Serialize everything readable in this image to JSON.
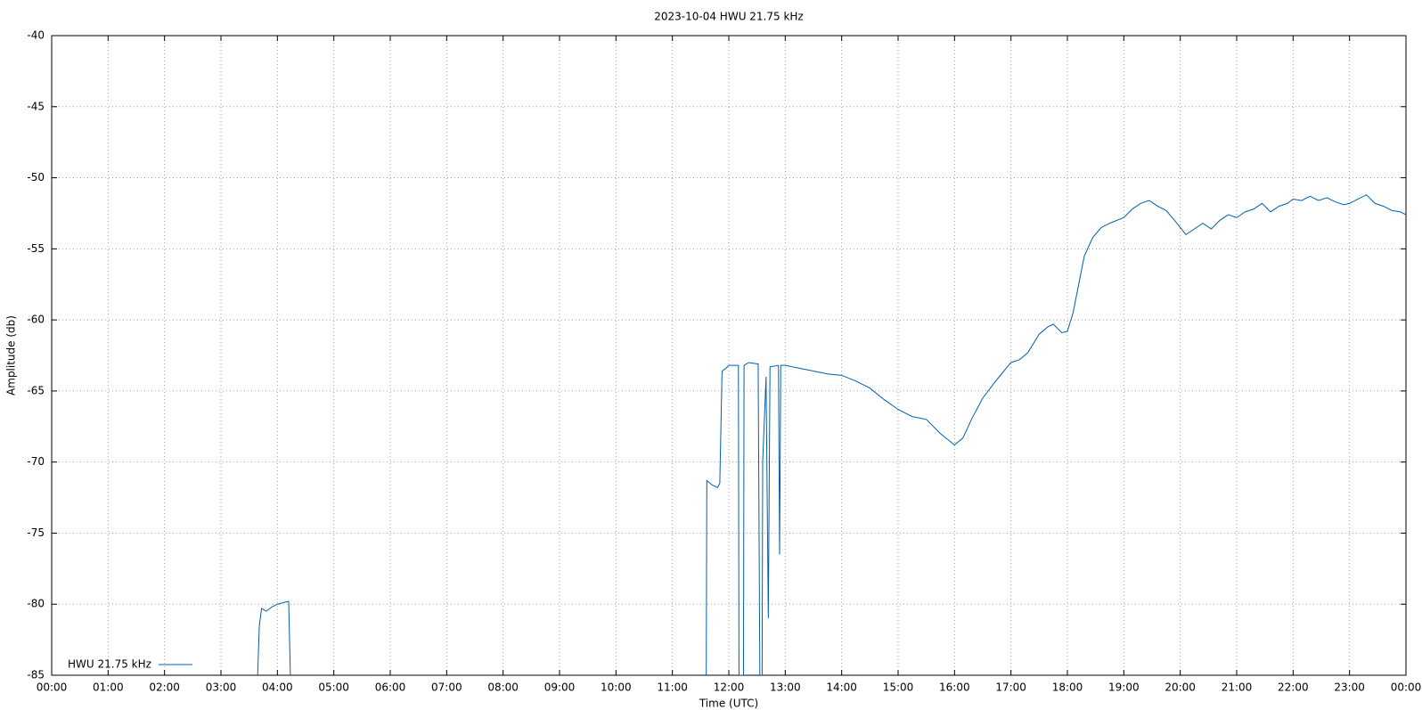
{
  "chart_data": {
    "type": "line",
    "title": "2023-10-04 HWU 21.75 kHz",
    "x_label": "Time (UTC)",
    "y_label": "Amplitude (db)",
    "xlim": [
      0,
      24
    ],
    "ylim": [
      -85,
      -40
    ],
    "xticks": [
      {
        "value": 0,
        "label": "00:00"
      },
      {
        "value": 1,
        "label": "01:00"
      },
      {
        "value": 2,
        "label": "02:00"
      },
      {
        "value": 3,
        "label": "03:00"
      },
      {
        "value": 4,
        "label": "04:00"
      },
      {
        "value": 5,
        "label": "05:00"
      },
      {
        "value": 6,
        "label": "06:00"
      },
      {
        "value": 7,
        "label": "07:00"
      },
      {
        "value": 8,
        "label": "08:00"
      },
      {
        "value": 9,
        "label": "09:00"
      },
      {
        "value": 10,
        "label": "10:00"
      },
      {
        "value": 11,
        "label": "11:00"
      },
      {
        "value": 12,
        "label": "12:00"
      },
      {
        "value": 13,
        "label": "13:00"
      },
      {
        "value": 14,
        "label": "14:00"
      },
      {
        "value": 15,
        "label": "15:00"
      },
      {
        "value": 16,
        "label": "16:00"
      },
      {
        "value": 17,
        "label": "17:00"
      },
      {
        "value": 18,
        "label": "18:00"
      },
      {
        "value": 19,
        "label": "19:00"
      },
      {
        "value": 20,
        "label": "20:00"
      },
      {
        "value": 21,
        "label": "21:00"
      },
      {
        "value": 22,
        "label": "22:00"
      },
      {
        "value": 23,
        "label": "23:00"
      },
      {
        "value": 24,
        "label": "00:00"
      }
    ],
    "yticks": [
      -85,
      -80,
      -75,
      -70,
      -65,
      -60,
      -55,
      -50,
      -45,
      -40
    ],
    "grid": true,
    "legend": "lower left",
    "x": [
      3.65,
      3.68,
      3.72,
      3.8,
      3.9,
      4.0,
      4.1,
      4.2,
      4.23,
      8.0,
      11.6,
      11.61,
      11.7,
      11.8,
      11.84,
      11.88,
      11.95,
      12.0,
      12.17,
      12.18,
      12.26,
      12.27,
      12.35,
      12.52,
      12.55,
      12.59,
      12.6,
      12.66,
      12.7,
      12.73,
      12.88,
      12.9,
      12.92,
      13.0,
      13.25,
      13.5,
      13.75,
      14.0,
      14.25,
      14.5,
      14.75,
      15.0,
      15.25,
      15.5,
      15.75,
      16.0,
      16.15,
      16.3,
      16.5,
      16.75,
      17.0,
      17.15,
      17.3,
      17.5,
      17.65,
      17.75,
      17.9,
      18.0,
      18.1,
      18.2,
      18.3,
      18.45,
      18.6,
      18.75,
      19.0,
      19.15,
      19.3,
      19.45,
      19.6,
      19.75,
      19.9,
      20.0,
      20.1,
      20.25,
      20.4,
      20.55,
      20.7,
      20.85,
      21.0,
      21.15,
      21.3,
      21.45,
      21.6,
      21.75,
      21.9,
      22.0,
      22.15,
      22.3,
      22.45,
      22.6,
      22.75,
      22.9,
      23.0,
      23.15,
      23.3,
      23.45,
      23.6,
      23.75,
      23.9,
      24.0
    ],
    "series": [
      {
        "name": "HWU 21.75 kHz",
        "color": "#0060ad",
        "values": [
          -85,
          -81.5,
          -80.3,
          -80.5,
          -80.2,
          -80.0,
          -79.9,
          -79.8,
          -85,
          null,
          -85,
          -71.3,
          -71.6,
          -71.8,
          -71.5,
          -63.6,
          -63.4,
          -63.2,
          -63.2,
          -85,
          -85,
          -63.2,
          -63.0,
          -63.1,
          -85,
          -85,
          -70,
          -64,
          -81,
          -63.3,
          -63.2,
          -76.5,
          -63.2,
          -63.2,
          -63.4,
          -63.6,
          -63.8,
          -63.9,
          -64.3,
          -64.8,
          -65.6,
          -66.3,
          -66.8,
          -67.0,
          -68.0,
          -68.8,
          -68.3,
          -67.0,
          -65.5,
          -64.2,
          -63.0,
          -62.8,
          -62.3,
          -61.0,
          -60.5,
          -60.3,
          -60.9,
          -60.8,
          -59.5,
          -57.5,
          -55.5,
          -54.2,
          -53.5,
          -53.2,
          -52.8,
          -52.2,
          -51.8,
          -51.6,
          -52.0,
          -52.3,
          -53.0,
          -53.5,
          -54.0,
          -53.6,
          -53.2,
          -53.6,
          -53.0,
          -52.6,
          -52.8,
          -52.4,
          -52.2,
          -51.8,
          -52.4,
          -52.0,
          -51.8,
          -51.5,
          -51.6,
          -51.3,
          -51.6,
          -51.4,
          -51.7,
          -51.9,
          -51.8,
          -51.5,
          -51.2,
          -51.8,
          -52.0,
          -52.3,
          -52.4,
          -52.6
        ]
      }
    ]
  }
}
